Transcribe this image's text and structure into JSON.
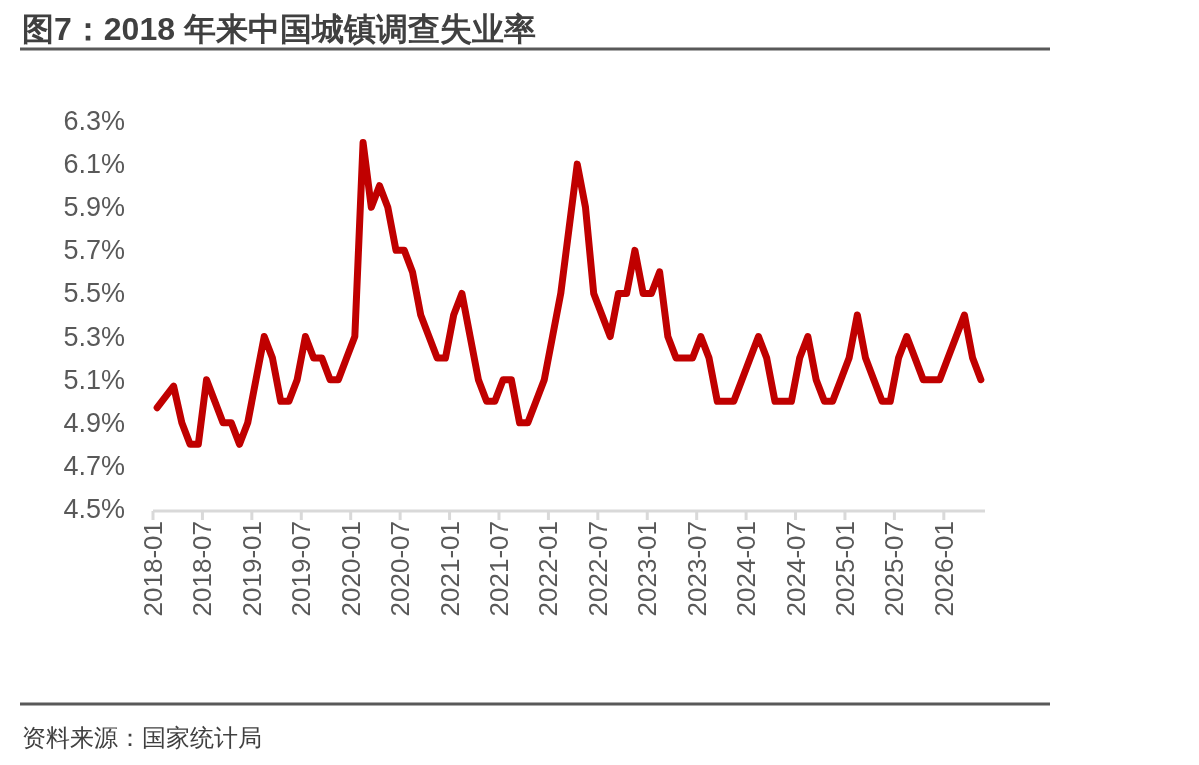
{
  "chart_data": {
    "type": "line",
    "title": "图7：2018 年来中国城镇调查失业率",
    "categories": [
      "2018-01",
      null,
      null,
      null,
      null,
      null,
      "2018-07",
      null,
      null,
      null,
      null,
      null,
      "2019-01",
      null,
      null,
      null,
      null,
      null,
      "2019-07",
      null,
      null,
      null,
      null,
      null,
      "2020-01",
      null,
      null,
      null,
      null,
      null,
      "2020-07",
      null,
      null,
      null,
      null,
      null,
      "2021-01",
      null,
      null,
      null,
      null,
      null,
      "2021-07",
      null,
      null,
      null,
      null,
      null,
      "2022-01",
      null,
      null,
      null,
      null,
      null,
      "2022-07",
      null,
      null,
      null,
      null,
      null,
      "2023-01",
      null,
      null,
      null,
      null,
      null,
      "2023-07",
      null,
      null,
      null,
      null,
      null,
      "2024-01",
      null,
      null,
      null,
      null,
      null,
      "2024-07",
      null,
      null,
      null,
      null,
      null,
      "2025-01",
      null,
      null,
      null,
      null,
      null,
      "2025-07",
      null,
      null,
      null,
      null,
      null,
      "2026-01",
      null,
      null,
      null,
      null
    ],
    "series": [
      {
        "color": "#c00000",
        "values": [
          4.97,
          5.02,
          5.07,
          4.9,
          4.8,
          4.8,
          5.1,
          5.0,
          4.9,
          4.9,
          4.8,
          4.9,
          5.1,
          5.3,
          5.2,
          5.0,
          5.0,
          5.1,
          5.3,
          5.2,
          5.2,
          5.1,
          5.1,
          5.2,
          5.3,
          6.2,
          5.9,
          6.0,
          5.9,
          5.7,
          5.7,
          5.6,
          5.4,
          5.3,
          5.2,
          5.2,
          5.4,
          5.5,
          5.3,
          5.1,
          5.0,
          5.0,
          5.1,
          5.1,
          4.9,
          4.9,
          5.0,
          5.1,
          5.3,
          5.5,
          5.8,
          6.1,
          5.9,
          5.5,
          5.4,
          5.3,
          5.5,
          5.5,
          5.7,
          5.5,
          5.5,
          5.6,
          5.3,
          5.2,
          5.2,
          5.2,
          5.3,
          5.2,
          5.0,
          5.0,
          5.0,
          5.1,
          5.2,
          5.3,
          5.2,
          5.0,
          5.0,
          5.0,
          5.2,
          5.3,
          5.1,
          5.0,
          5.0,
          5.1,
          5.2,
          5.4,
          5.2,
          5.1,
          5.0,
          5.0,
          5.2,
          5.3,
          5.2,
          5.1,
          5.1,
          5.1,
          5.2,
          5.3,
          5.4,
          5.2,
          5.1
        ]
      }
    ],
    "ylim": [
      4.5,
      6.3
    ],
    "yticks": [
      {
        "value": 4.5,
        "label": "4.5%"
      },
      {
        "value": 4.7,
        "label": "4.7%"
      },
      {
        "value": 4.9,
        "label": "4.9%"
      },
      {
        "value": 5.1,
        "label": "5.1%"
      },
      {
        "value": 5.3,
        "label": "5.3%"
      },
      {
        "value": 5.5,
        "label": "5.5%"
      },
      {
        "value": 5.7,
        "label": "5.7%"
      },
      {
        "value": 5.9,
        "label": "5.9%"
      },
      {
        "value": 6.1,
        "label": "6.1%"
      },
      {
        "value": 6.3,
        "label": "6.3%"
      }
    ],
    "line_style": "solid",
    "annotations": [
      "资料来源：国家统计局"
    ]
  }
}
